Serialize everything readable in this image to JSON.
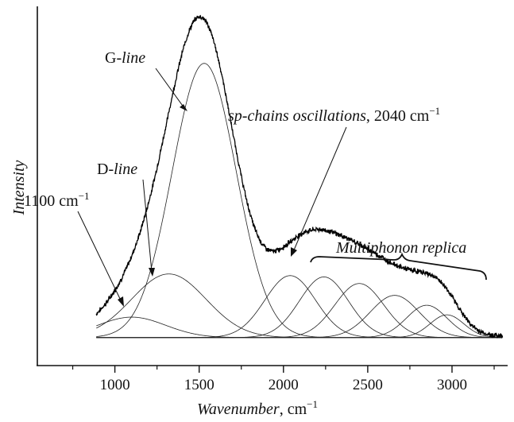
{
  "chart_data": {
    "type": "line",
    "title": "",
    "xlabel": {
      "main": "Wavenumber",
      "unit": ", cm",
      "sup": "−1"
    },
    "ylabel": "Intensity",
    "xlim": [
      540,
      3330
    ],
    "ylim": [
      -0.09,
      1.0
    ],
    "x_ticks": [
      1000,
      1500,
      2000,
      2500,
      3000
    ],
    "x_tick_labels": [
      "1000",
      "1500",
      "2000",
      "2500",
      "3000"
    ],
    "x_minor_ticks": [
      750,
      1250,
      1750,
      2250,
      2750,
      3250
    ],
    "y_ticks": [],
    "grid": false,
    "x_range": [
      890,
      3300
    ],
    "baseline": -0.005,
    "series": [
      {
        "kind": "measured",
        "noise": 0.006
      }
    ],
    "components": [
      {
        "center": 1100,
        "height": 0.062,
        "width": 200
      },
      {
        "center": 1320,
        "height": 0.193,
        "width": 220
      },
      {
        "center": 1530,
        "height": 0.832,
        "width": 190
      },
      {
        "center": 2040,
        "height": 0.188,
        "width": 150
      },
      {
        "center": 2240,
        "height": 0.184,
        "width": 145
      },
      {
        "center": 2450,
        "height": 0.164,
        "width": 145
      },
      {
        "center": 2660,
        "height": 0.128,
        "width": 145
      },
      {
        "center": 2850,
        "height": 0.098,
        "width": 120
      },
      {
        "center": 2970,
        "height": 0.069,
        "width": 100
      }
    ],
    "annotations": [
      {
        "id": "g-line",
        "prefix": "G-",
        "italic": "line",
        "suffix": "",
        "sup": ""
      },
      {
        "id": "d-line",
        "prefix": "D-",
        "italic": "line",
        "suffix": "",
        "sup": ""
      },
      {
        "id": "cm1100",
        "prefix": "1100 cm",
        "italic": "",
        "suffix": "",
        "sup": "−1"
      },
      {
        "id": "sp-chains",
        "prefix": "",
        "italic": "sp-chains oscillations",
        "suffix": ", 2040 cm",
        "sup": "−1"
      },
      {
        "id": "multiphonon",
        "prefix": "",
        "italic": "Multiphonon replica",
        "suffix": "",
        "sup": ""
      }
    ]
  }
}
